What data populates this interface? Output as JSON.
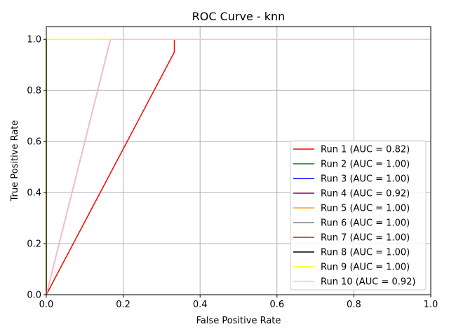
{
  "chart_data": {
    "type": "line",
    "title": "ROC Curve - knn",
    "xlabel": "False Positive Rate",
    "ylabel": "True Positive Rate",
    "xlim": [
      0,
      1
    ],
    "ylim": [
      0,
      1.05
    ],
    "x_ticks": [
      "0.0",
      "0.2",
      "0.4",
      "0.6",
      "0.8",
      "1.0"
    ],
    "y_ticks": [
      "0.0",
      "0.2",
      "0.4",
      "0.6",
      "0.8",
      "1.0"
    ],
    "grid": true,
    "legend_position": "bottom-right",
    "series": [
      {
        "name": "Run 1 (AUC = 0.82)",
        "color": "#ff0000",
        "x": [
          0,
          0.333,
          0.333,
          1
        ],
        "y": [
          0,
          0.95,
          1,
          1
        ]
      },
      {
        "name": "Run 2 (AUC = 1.00)",
        "color": "#008000",
        "x": [
          0,
          0,
          1
        ],
        "y": [
          0,
          1,
          1
        ]
      },
      {
        "name": "Run 3 (AUC = 1.00)",
        "color": "#0000ff",
        "x": [
          0,
          0,
          1
        ],
        "y": [
          0,
          1,
          1
        ]
      },
      {
        "name": "Run 4 (AUC = 0.92)",
        "color": "#800080",
        "x": [
          0,
          0.167,
          1
        ],
        "y": [
          0,
          1,
          1
        ]
      },
      {
        "name": "Run 5 (AUC = 1.00)",
        "color": "#ffa500",
        "x": [
          0,
          0,
          1
        ],
        "y": [
          0,
          1,
          1
        ]
      },
      {
        "name": "Run 6 (AUC = 1.00)",
        "color": "#808080",
        "x": [
          0,
          0,
          1
        ],
        "y": [
          0,
          1,
          1
        ]
      },
      {
        "name": "Run 7 (AUC = 1.00)",
        "color": "#a52a2a",
        "x": [
          0,
          0,
          1
        ],
        "y": [
          0,
          1,
          1
        ]
      },
      {
        "name": "Run 8 (AUC = 1.00)",
        "color": "#000000",
        "x": [
          0,
          0,
          1
        ],
        "y": [
          0,
          1,
          1
        ]
      },
      {
        "name": "Run 9 (AUC = 1.00)",
        "color": "#ffff00",
        "x": [
          0,
          0,
          1
        ],
        "y": [
          0,
          1,
          1
        ]
      },
      {
        "name": "Run 10 (AUC = 0.92)",
        "color": "#ffc0cb",
        "x": [
          0,
          0.167,
          1
        ],
        "y": [
          0,
          1,
          1
        ]
      }
    ]
  }
}
